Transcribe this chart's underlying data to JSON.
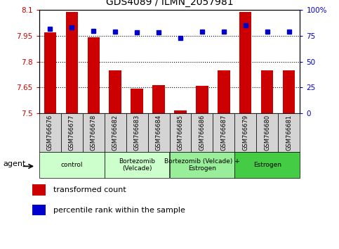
{
  "title": "GDS4089 / ILMN_2057981",
  "samples": [
    "GSM766676",
    "GSM766677",
    "GSM766678",
    "GSM766682",
    "GSM766683",
    "GSM766684",
    "GSM766685",
    "GSM766686",
    "GSM766687",
    "GSM766679",
    "GSM766680",
    "GSM766681"
  ],
  "bar_values": [
    7.97,
    8.09,
    7.94,
    7.75,
    7.645,
    7.665,
    7.515,
    7.66,
    7.75,
    8.09,
    7.75,
    7.75
  ],
  "percentile_values": [
    82,
    83,
    80,
    79,
    78,
    78,
    73,
    79,
    79,
    85,
    79,
    79
  ],
  "bar_bottom": 7.5,
  "ylim_left": [
    7.5,
    8.1
  ],
  "ylim_right": [
    0,
    100
  ],
  "yticks_left": [
    7.5,
    7.65,
    7.8,
    7.95,
    8.1
  ],
  "ytick_labels_left": [
    "7.5",
    "7.65",
    "7.8",
    "7.95",
    "8.1"
  ],
  "yticks_right": [
    0,
    25,
    50,
    75,
    100
  ],
  "ytick_labels_right": [
    "0",
    "25",
    "50",
    "75",
    "100%"
  ],
  "hlines": [
    7.65,
    7.8,
    7.95
  ],
  "bar_color": "#cc0000",
  "dot_color": "#0000cc",
  "groups": [
    {
      "label": "control",
      "start": 0,
      "end": 2,
      "color": "#ccffcc"
    },
    {
      "label": "Bortezomib\n(Velcade)",
      "start": 3,
      "end": 5,
      "color": "#ccffcc"
    },
    {
      "label": "Bortezomib (Velcade) +\nEstrogen",
      "start": 6,
      "end": 8,
      "color": "#99ee99"
    },
    {
      "label": "Estrogen",
      "start": 9,
      "end": 11,
      "color": "#44cc44"
    }
  ],
  "agent_label": "agent",
  "legend_bar_label": "transformed count",
  "legend_dot_label": "percentile rank within the sample",
  "background_color": "#ffffff",
  "tick_label_color_left": "#cc0000",
  "tick_label_color_right": "#0000cc"
}
